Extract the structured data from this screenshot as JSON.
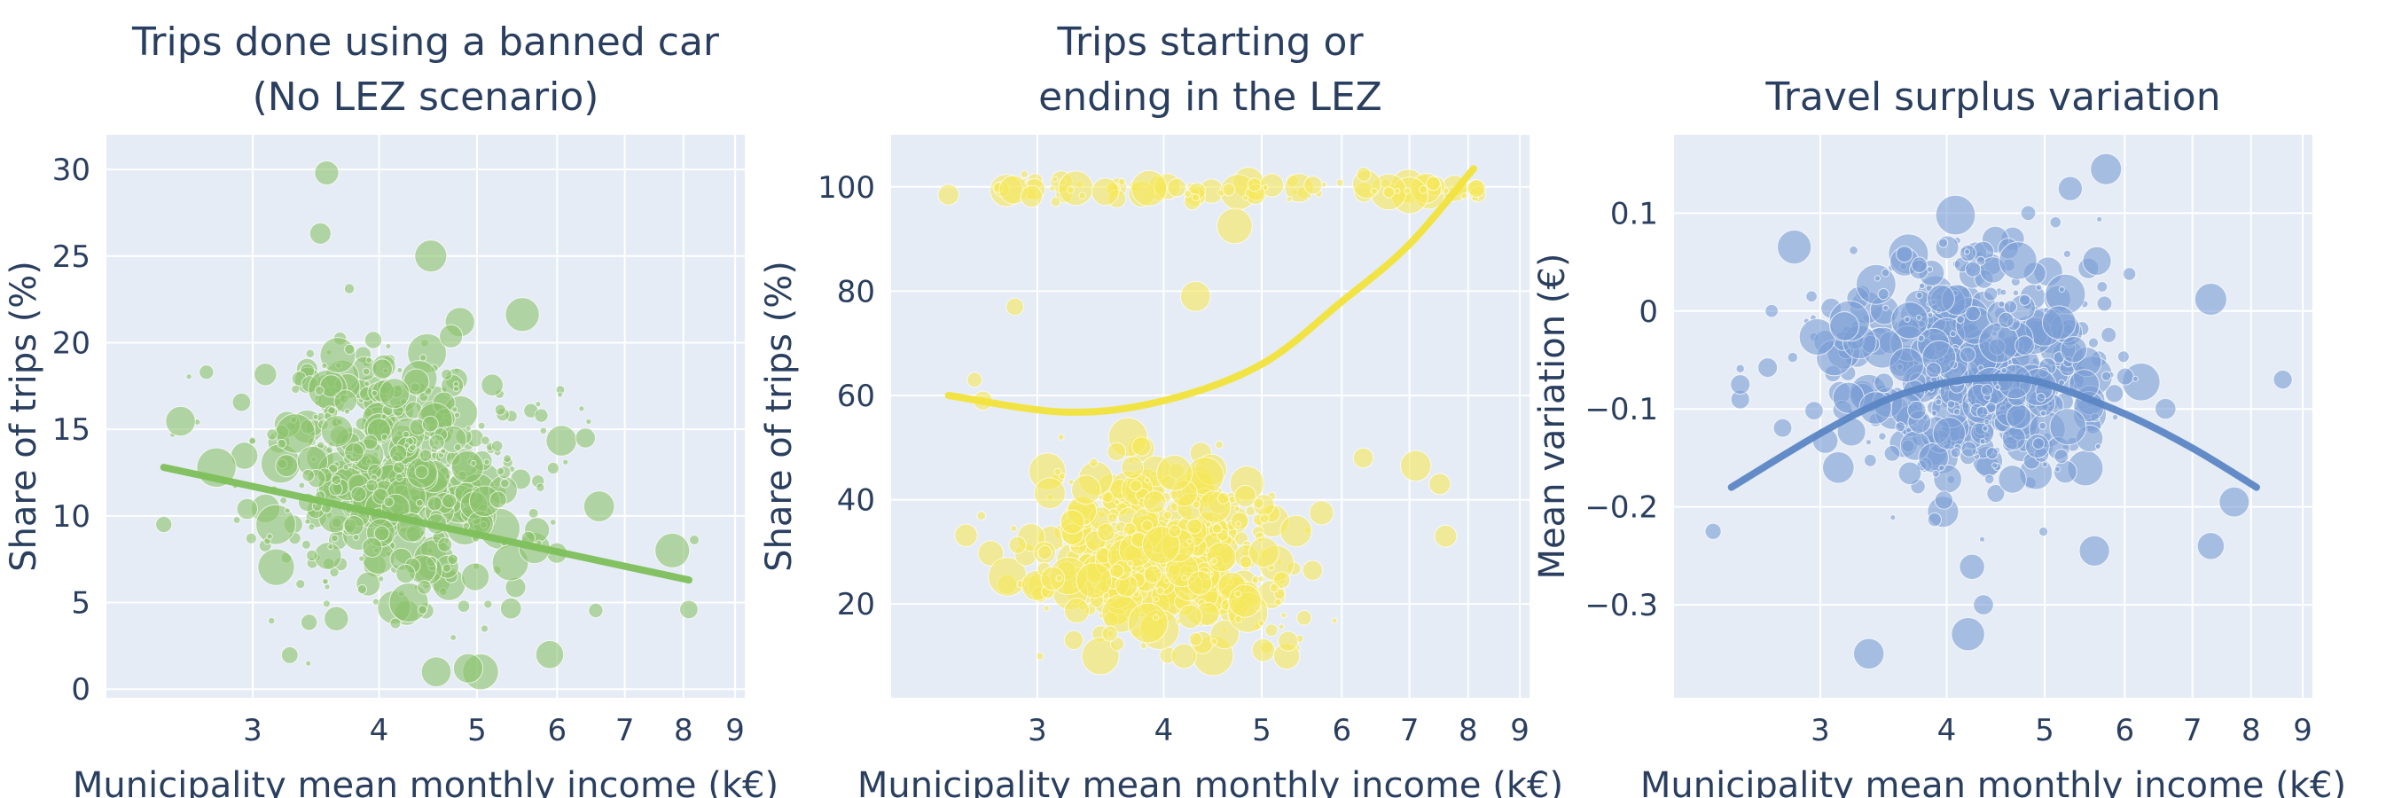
{
  "chart_data": [
    {
      "type": "scatter",
      "title_lines": [
        "Trips done using a banned car",
        "(No LEZ scenario)"
      ],
      "xlabel": "Municipality mean monthly income (k€)",
      "ylabel": "Share of trips (%)",
      "x_scale": "log",
      "xlim": [
        2.15,
        9.2
      ],
      "ylim": [
        -0.5,
        32
      ],
      "xticks": [
        3,
        4,
        5,
        6,
        7,
        8,
        9
      ],
      "yticks": [
        0,
        5,
        10,
        15,
        20,
        25,
        30
      ],
      "ytick_labels": [
        "0",
        "5",
        "10",
        "15",
        "20",
        "25",
        "30"
      ],
      "color": "#8cc36c",
      "grid": true,
      "scatter_cloud": {
        "x_center": 4.1,
        "x_spread": 0.16,
        "x_min": 2.5,
        "x_max": 8.2,
        "y_center": 12.5,
        "y_spread": 3.8,
        "y_min": 1,
        "y_max": 26.5,
        "count": 560
      },
      "scatter_highlights": [
        {
          "x": 2.45,
          "y": 9.5
        },
        {
          "x": 3.55,
          "y": 29.8
        },
        {
          "x": 3.5,
          "y": 26.3
        },
        {
          "x": 4.5,
          "y": 25.0
        },
        {
          "x": 8.1,
          "y": 4.6
        },
        {
          "x": 7.8,
          "y": 8.0
        },
        {
          "x": 5.9,
          "y": 2.0
        },
        {
          "x": 4.9,
          "y": 1.2
        },
        {
          "x": 6.4,
          "y": 14.5
        },
        {
          "x": 2.7,
          "y": 18.3
        }
      ],
      "trend": {
        "x": [
          2.45,
          8.1
        ],
        "y": [
          12.8,
          6.3
        ]
      }
    },
    {
      "type": "scatter",
      "title_lines": [
        "Trips starting or",
        "ending in the LEZ"
      ],
      "xlabel": "Municipality mean monthly income (k€)",
      "ylabel": "Share of trips (%)",
      "x_scale": "log",
      "xlim": [
        2.15,
        9.2
      ],
      "ylim": [
        2,
        110
      ],
      "xticks": [
        3,
        4,
        5,
        6,
        7,
        8,
        9
      ],
      "yticks": [
        20,
        40,
        60,
        80,
        100
      ],
      "ytick_labels": [
        "20",
        "40",
        "60",
        "80",
        "100"
      ],
      "color": "#f5e85a",
      "grid": true,
      "scatter_cloud": {
        "x_center": 3.95,
        "x_spread": 0.15,
        "x_min": 2.55,
        "x_max": 6.2,
        "y_center": 29,
        "y_spread": 8.5,
        "y_min": 10,
        "y_max": 52,
        "count": 520
      },
      "scatter_band": {
        "x_min": 2.7,
        "x_max": 8.2,
        "y_center": 99.5,
        "y_spread": 1.0,
        "count": 95
      },
      "scatter_highlights": [
        {
          "x": 2.45,
          "y": 98.5
        },
        {
          "x": 7.5,
          "y": 43
        },
        {
          "x": 7.6,
          "y": 33
        },
        {
          "x": 6.3,
          "y": 48
        },
        {
          "x": 2.6,
          "y": 63
        },
        {
          "x": 2.65,
          "y": 59
        },
        {
          "x": 2.85,
          "y": 77
        },
        {
          "x": 4.3,
          "y": 79
        },
        {
          "x": 4.7,
          "y": 92.5
        },
        {
          "x": 7.1,
          "y": 46.5
        }
      ],
      "trend": {
        "x": [
          2.45,
          3.2,
          4,
          5,
          6,
          7,
          8.1
        ],
        "y": [
          60,
          56.8,
          59,
          66,
          78,
          89,
          103.5
        ]
      }
    },
    {
      "type": "scatter",
      "title_lines": [
        "Travel surplus variation"
      ],
      "xlabel": "Municipality mean monthly income (k€)",
      "ylabel": "Mean variation (€)",
      "x_scale": "log",
      "xlim": [
        2.15,
        9.2
      ],
      "ylim": [
        -0.395,
        0.18
      ],
      "xticks": [
        3,
        4,
        5,
        6,
        7,
        8,
        9
      ],
      "yticks": [
        -0.3,
        -0.2,
        -0.1,
        0,
        0.1
      ],
      "ytick_labels": [
        "−0.3",
        "−0.2",
        "−0.1",
        "0",
        "0.1"
      ],
      "color": "#7b9fd6",
      "grid": true,
      "scatter_cloud": {
        "x_center": 4.2,
        "x_spread": 0.16,
        "x_min": 2.5,
        "x_max": 7.5,
        "y_center": -0.06,
        "y_spread": 0.06,
        "y_min": -0.3,
        "y_max": 0.1,
        "count": 560
      },
      "scatter_highlights": [
        {
          "x": 2.35,
          "y": -0.225
        },
        {
          "x": 3.35,
          "y": -0.35
        },
        {
          "x": 4.2,
          "y": -0.33
        },
        {
          "x": 4.35,
          "y": -0.3
        },
        {
          "x": 5.75,
          "y": 0.145
        },
        {
          "x": 5.3,
          "y": 0.125
        },
        {
          "x": 8.6,
          "y": -0.07
        },
        {
          "x": 7.7,
          "y": -0.195
        },
        {
          "x": 7.3,
          "y": -0.24
        },
        {
          "x": 7.3,
          "y": 0.012
        },
        {
          "x": 5.6,
          "y": -0.245
        },
        {
          "x": 2.5,
          "y": -0.075
        }
      ],
      "trend": {
        "x": [
          2.45,
          3,
          3.5,
          4,
          4.5,
          5,
          6,
          7,
          8.1
        ],
        "y": [
          -0.18,
          -0.125,
          -0.09,
          -0.073,
          -0.068,
          -0.074,
          -0.105,
          -0.14,
          -0.18
        ]
      }
    }
  ]
}
